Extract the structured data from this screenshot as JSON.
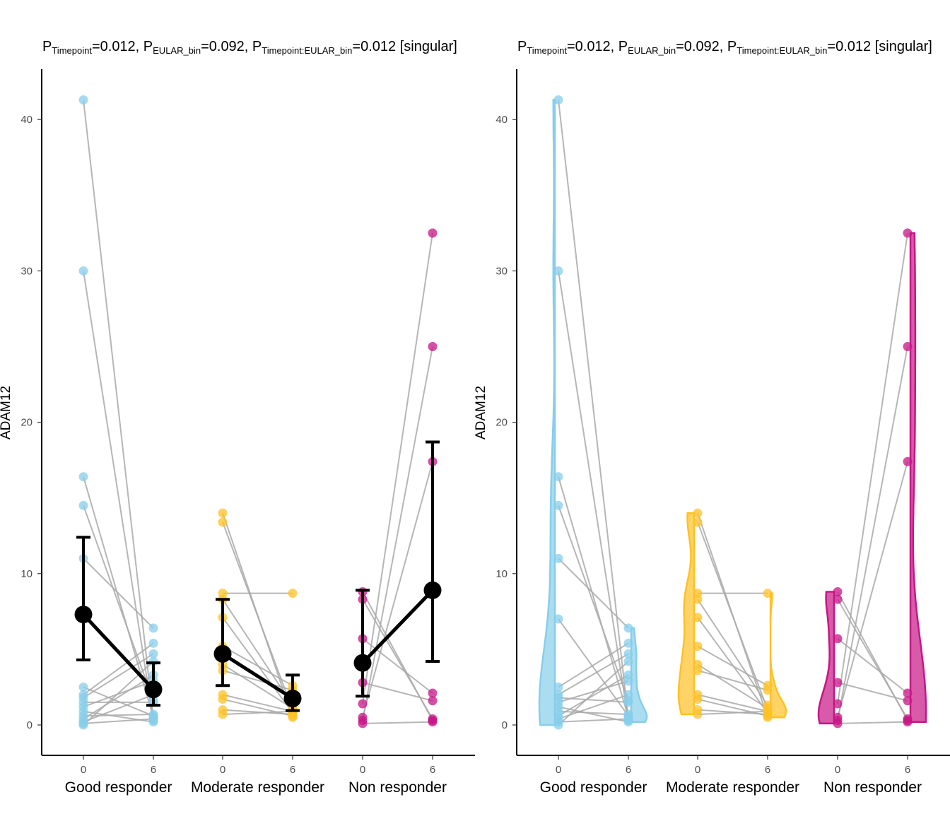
{
  "chart_data": [
    {
      "type": "scatter",
      "panel": "left",
      "title_parts": [
        {
          "text": "P"
        },
        {
          "sub": "Timepoint"
        },
        {
          "text": "=0.012, P"
        },
        {
          "sub": "EULAR_bin"
        },
        {
          "text": "=0.092, P"
        },
        {
          "sub": "Timepoint:EULAR_bin"
        },
        {
          "text": "=0.012 [singular]"
        }
      ],
      "ylabel": "ADAM12",
      "ylim": [
        -2,
        43
      ],
      "yticks": [
        0,
        10,
        20,
        30,
        40
      ],
      "x_ticks": [
        "0",
        "6",
        "0",
        "6",
        "0",
        "6"
      ],
      "groups": [
        {
          "name": "Good responder",
          "color": "#87CEEB",
          "t0": [
            41.3,
            30.0,
            16.4,
            14.5,
            11.0,
            2.5,
            2.0,
            1.8,
            1.5,
            1.2,
            0.9,
            0.6,
            0.4,
            0.2,
            0.1,
            0.0
          ],
          "t6": [
            0.4,
            0.3,
            0.5,
            1.6,
            6.4,
            0.6,
            5.4,
            4.7,
            1.5,
            2.9,
            0.2,
            0.7,
            3.3,
            2.0,
            0.4,
            4.2
          ],
          "mean": [
            7.3,
            2.35
          ],
          "ci_low": [
            4.3,
            1.3
          ],
          "ci_high": [
            12.4,
            4.1
          ]
        },
        {
          "name": "Moderate responder",
          "color": "#FFC125",
          "t0": [
            14.0,
            13.4,
            8.7,
            8.3,
            7.1,
            5.2,
            4.0,
            3.6,
            2.0,
            1.7,
            1.0,
            0.7
          ],
          "t6": [
            0.5,
            1.0,
            8.7,
            1.3,
            0.8,
            2.6,
            1.1,
            2.3,
            0.9,
            0.6,
            0.7,
            0.9
          ],
          "mean": [
            4.7,
            1.75
          ],
          "ci_low": [
            2.6,
            0.95
          ],
          "ci_high": [
            8.3,
            3.3
          ]
        },
        {
          "name": "Non responder",
          "color": "#C71585",
          "t0": [
            8.8,
            8.3,
            5.7,
            2.8,
            1.4,
            0.5,
            0.3,
            0.1
          ],
          "t6": [
            0.3,
            0.4,
            2.1,
            1.6,
            32.5,
            17.4,
            25.0,
            0.2
          ],
          "mean": [
            4.1,
            8.9
          ],
          "ci_low": [
            1.9,
            4.2
          ],
          "ci_high": [
            8.9,
            18.7
          ]
        }
      ]
    },
    {
      "type": "scatter",
      "panel": "right",
      "title_parts": [
        {
          "text": "P"
        },
        {
          "sub": "Timepoint"
        },
        {
          "text": "=0.012, P"
        },
        {
          "sub": "EULAR_bin"
        },
        {
          "text": "=0.092, P"
        },
        {
          "sub": "Timepoint:EULAR_bin"
        },
        {
          "text": "=0.012 [singular]"
        }
      ],
      "ylabel": "ADAM12",
      "ylim": [
        -2,
        43
      ],
      "yticks": [
        0,
        10,
        20,
        30,
        40
      ],
      "x_ticks": [
        "0",
        "6",
        "0",
        "6",
        "0",
        "6"
      ],
      "groups": [
        {
          "name": "Good responder",
          "color": "#87CEEB",
          "t0": [
            41.3,
            30.0,
            16.4,
            14.5,
            11.0,
            7.0,
            2.5,
            2.0,
            1.8,
            1.5,
            1.2,
            0.9,
            0.6,
            0.4,
            0.2,
            0.0
          ],
          "t6": [
            0.4,
            0.3,
            0.5,
            1.6,
            6.4,
            0.6,
            5.4,
            4.7,
            1.5,
            2.9,
            0.2,
            0.7,
            3.3,
            2.0,
            0.4,
            4.2
          ]
        },
        {
          "name": "Moderate responder",
          "color": "#FFC125",
          "t0": [
            14.0,
            13.4,
            8.7,
            8.3,
            7.1,
            5.2,
            4.0,
            3.6,
            2.0,
            1.7,
            1.0,
            0.7
          ],
          "t6": [
            0.5,
            1.0,
            8.7,
            1.3,
            0.8,
            2.6,
            1.1,
            2.3,
            0.9,
            0.6,
            0.7,
            0.9
          ]
        },
        {
          "name": "Non responder",
          "color": "#C71585",
          "t0": [
            8.8,
            8.3,
            5.7,
            2.8,
            1.4,
            0.5,
            0.3,
            0.1
          ],
          "t6": [
            0.3,
            0.4,
            2.1,
            1.6,
            32.5,
            17.4,
            25.0,
            0.2
          ]
        }
      ]
    }
  ]
}
